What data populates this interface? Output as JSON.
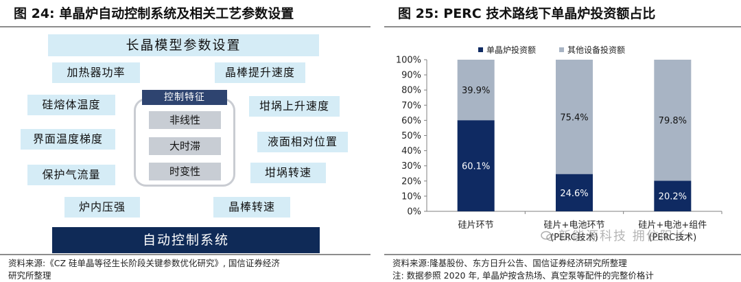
{
  "left": {
    "title": "图 24:  单晶炉自动控制系统及相关工艺参数设置",
    "banner_top": "长晶模型参数设置",
    "banner_bottom": "自动控制系统",
    "center_title": "控制特征",
    "features": [
      "非线性",
      "大时滞",
      "时变性"
    ],
    "params": {
      "heater_power": "加热器功率",
      "melt_temp": "硅熔体温度",
      "interface_grad": "界面温度梯度",
      "gas_flow": "保护气流量",
      "furnace_pressure": "炉内压强",
      "lift_speed": "晶棒提升速度",
      "crucible_lift": "坩埚上升速度",
      "liquid_position": "液面相对位置",
      "crucible_rotation": "坩埚转速",
      "rod_rotation": "晶棒转速"
    },
    "source_line1": "资料来源:《CZ 硅单晶等径生长阶段关键参数优化研究》, 国信证券经济",
    "source_line2": "研究所整理"
  },
  "right": {
    "title": "图 25:  PERC 技术路线下单晶炉投资额占比",
    "source_line1": "资料来源:隆基股份、东方日升公告、国信证券经济研究所整理",
    "source_line2": "注:  数据参照 2020 年, 单晶炉按含热场、真空泵等配件的完整价格计",
    "watermark": "新能源科技 拥住阳长"
  },
  "chart_data": {
    "type": "bar",
    "stacked": true,
    "percent": true,
    "categories": [
      [
        "硅片环节"
      ],
      [
        "硅片+电池环节",
        "(PERC技术)"
      ],
      [
        "硅片+电池+组件",
        "(PERC技术)"
      ]
    ],
    "series": [
      {
        "name": "单晶炉投资额",
        "values": [
          60.1,
          24.6,
          20.2
        ],
        "labels": [
          "60.1%",
          "24.6%",
          "20.2%"
        ],
        "color": "#0f2a62"
      },
      {
        "name": "其他设备投资额",
        "values": [
          39.9,
          75.4,
          79.8
        ],
        "labels": [
          "39.9%",
          "75.4%",
          "79.8%"
        ],
        "color": "#a8b4c4"
      }
    ],
    "ylim": [
      0,
      100
    ],
    "yticks": [
      "0%",
      "10%",
      "20%",
      "30%",
      "40%",
      "50%",
      "60%",
      "70%",
      "80%",
      "90%",
      "100%"
    ],
    "legend_position": "top",
    "grid": false
  }
}
